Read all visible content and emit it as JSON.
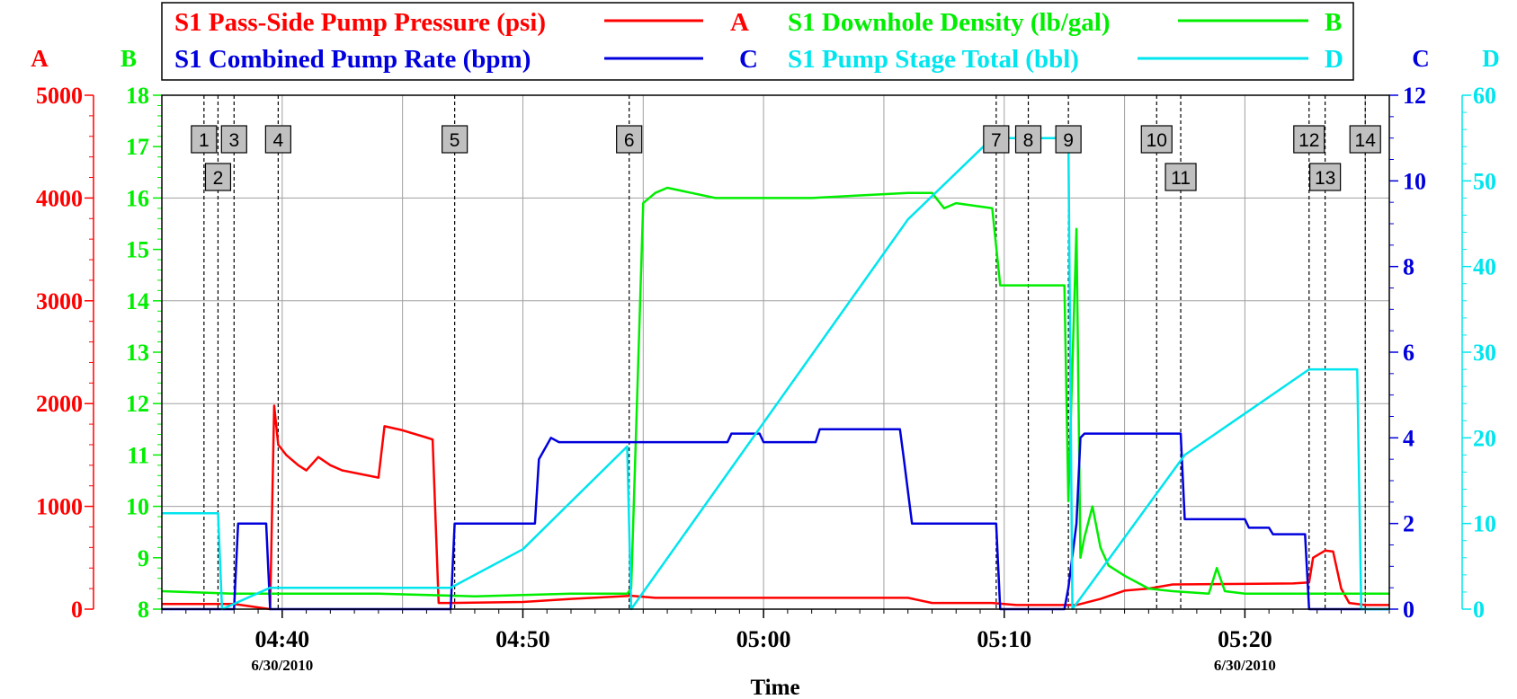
{
  "chart_data": {
    "type": "line",
    "xlabel": "Time",
    "x_ticks": [
      {
        "time": "04:40",
        "date": "6/30/2010"
      },
      {
        "time": "04:50",
        "date": ""
      },
      {
        "time": "05:00",
        "date": ""
      },
      {
        "time": "05:10",
        "date": ""
      },
      {
        "time": "05:20",
        "date": "6/30/2010"
      }
    ],
    "xlim": [
      "04:35",
      "05:26"
    ],
    "grid": true,
    "legend_placement": "top",
    "axes": [
      {
        "id": "A",
        "label": "A",
        "color": "#ff0000",
        "side": "left",
        "min": 0,
        "max": 5000,
        "ticks": [
          0,
          1000,
          2000,
          3000,
          4000,
          5000
        ]
      },
      {
        "id": "B",
        "label": "B",
        "color": "#00ee00",
        "side": "left",
        "min": 8,
        "max": 18,
        "ticks": [
          8,
          9,
          10,
          11,
          12,
          13,
          14,
          15,
          16,
          17,
          18
        ]
      },
      {
        "id": "C",
        "label": "C",
        "color": "#0000dd",
        "side": "right",
        "min": 0,
        "max": 12,
        "ticks": [
          0,
          2,
          4,
          6,
          8,
          10,
          12
        ]
      },
      {
        "id": "D",
        "label": "D",
        "color": "#00e5ee",
        "side": "right",
        "min": 0,
        "max": 60,
        "ticks": [
          0,
          10,
          20,
          30,
          40,
          50,
          60
        ]
      }
    ],
    "series": [
      {
        "name": "S1 Pass-Side Pump Pressure (psi)",
        "axis": "A",
        "color": "#ff0000",
        "x": [
          "04:35:00",
          "04:38:00",
          "04:39:30",
          "04:39:40",
          "04:39:50",
          "04:40:10",
          "04:40:40",
          "04:41:00",
          "04:41:30",
          "04:42:00",
          "04:42:30",
          "04:44:00",
          "04:44:15",
          "04:45:00",
          "04:46:00",
          "04:46:15",
          "04:46:30",
          "04:47:00",
          "04:50:00",
          "04:52:00",
          "04:54:30",
          "04:55:30",
          "05:06:00",
          "05:07:00",
          "05:09:30",
          "05:10:30",
          "05:12:30",
          "05:13:00",
          "05:14:00",
          "05:15:00",
          "05:16:00",
          "05:17:00",
          "05:22:00",
          "05:22:40",
          "05:22:50",
          "05:23:20",
          "05:23:40",
          "05:24:00",
          "05:24:20",
          "05:25:00",
          "05:26:00"
        ],
        "values": [
          50,
          50,
          0,
          1980,
          1600,
          1500,
          1400,
          1350,
          1480,
          1400,
          1350,
          1280,
          1780,
          1740,
          1670,
          1650,
          60,
          60,
          70,
          100,
          130,
          110,
          110,
          60,
          60,
          40,
          40,
          40,
          100,
          180,
          200,
          240,
          250,
          260,
          500,
          570,
          560,
          200,
          60,
          40,
          40
        ]
      },
      {
        "name": "S1 Downhole Density (lb/gal)",
        "axis": "B",
        "color": "#00ee00",
        "x": [
          "04:35:00",
          "04:38:00",
          "04:40:00",
          "04:44:00",
          "04:48:00",
          "04:52:00",
          "04:54:20",
          "04:54:30",
          "04:55:00",
          "04:55:30",
          "04:56:00",
          "04:57:00",
          "04:58:00",
          "05:00:00",
          "05:02:00",
          "05:04:00",
          "05:06:00",
          "05:07:00",
          "05:07:30",
          "05:08:00",
          "05:09:30",
          "05:09:50",
          "05:10:30",
          "05:12:30",
          "05:12:40",
          "05:13:00",
          "05:13:10",
          "05:13:20",
          "05:13:40",
          "05:14:00",
          "05:14:20",
          "05:15:00",
          "05:16:00",
          "05:17:00",
          "05:18:30",
          "05:18:50",
          "05:19:10",
          "05:20:00",
          "05:22:00",
          "05:24:00",
          "05:26:00"
        ],
        "values": [
          8.35,
          8.3,
          8.3,
          8.3,
          8.25,
          8.3,
          8.3,
          8.4,
          15.9,
          16.1,
          16.2,
          16.1,
          16.0,
          16.0,
          16.0,
          16.05,
          16.1,
          16.1,
          15.8,
          15.9,
          15.8,
          14.3,
          14.3,
          14.3,
          10.1,
          15.4,
          9.0,
          9.4,
          10.0,
          9.2,
          8.85,
          8.65,
          8.4,
          8.35,
          8.3,
          8.8,
          8.35,
          8.3,
          8.3,
          8.3,
          8.3
        ]
      },
      {
        "name": "S1 Combined Pump Rate (bpm)",
        "axis": "C",
        "color": "#0000dd",
        "x": [
          "04:35:00",
          "04:37:00",
          "04:37:40",
          "04:38:00",
          "04:38:10",
          "04:39:20",
          "04:39:30",
          "04:39:40",
          "04:47:00",
          "04:47:10",
          "04:50:30",
          "04:50:40",
          "04:51:10",
          "04:51:30",
          "04:58:30",
          "04:58:40",
          "04:59:50",
          "05:00:00",
          "05:02:10",
          "05:02:20",
          "05:05:40",
          "05:05:50",
          "05:06:10",
          "05:09:40",
          "05:09:50",
          "05:12:30",
          "05:12:40",
          "05:13:00",
          "05:13:10",
          "05:13:20",
          "05:13:40",
          "05:17:20",
          "05:17:30",
          "05:20:00",
          "05:20:10",
          "05:21:00",
          "05:21:10",
          "05:22:30",
          "05:22:40",
          "05:26:00"
        ],
        "values": [
          0,
          0,
          0,
          0,
          2.0,
          2.0,
          0,
          0,
          0,
          2.0,
          2.0,
          3.5,
          4.0,
          3.9,
          3.9,
          4.1,
          4.1,
          3.9,
          3.9,
          4.2,
          4.2,
          3.5,
          2.0,
          2.0,
          0,
          0,
          0.5,
          2.0,
          4.0,
          4.1,
          4.1,
          4.1,
          2.1,
          2.1,
          1.9,
          1.9,
          1.75,
          1.75,
          0,
          0
        ]
      },
      {
        "name": "S1 Pump Stage Total (bbl)",
        "axis": "D",
        "color": "#00e5ee",
        "x": [
          "04:35:00",
          "04:37:20",
          "04:37:30",
          "04:39:30",
          "04:47:00",
          "04:50:00",
          "04:54:20",
          "04:54:30",
          "05:06:00",
          "05:09:30",
          "05:10:00",
          "05:12:40",
          "05:12:50",
          "05:17:30",
          "05:22:40",
          "05:24:40",
          "05:24:50",
          "05:26:00"
        ],
        "values": [
          11.2,
          11.2,
          0,
          2.5,
          2.5,
          7,
          19,
          0,
          45.5,
          55,
          55,
          55,
          0,
          18,
          28,
          28,
          0,
          0
        ]
      }
    ],
    "markers": [
      {
        "label": "1",
        "time": "04:36:45",
        "row": 1
      },
      {
        "label": "2",
        "time": "04:37:20",
        "row": 2
      },
      {
        "label": "3",
        "time": "04:38:00",
        "row": 1
      },
      {
        "label": "4",
        "time": "04:39:50",
        "row": 1
      },
      {
        "label": "5",
        "time": "04:47:10",
        "row": 1
      },
      {
        "label": "6",
        "time": "04:54:25",
        "row": 1
      },
      {
        "label": "7",
        "time": "05:09:40",
        "row": 1
      },
      {
        "label": "8",
        "time": "05:11:00",
        "row": 1
      },
      {
        "label": "9",
        "time": "05:12:40",
        "row": 1
      },
      {
        "label": "10",
        "time": "05:16:20",
        "row": 1
      },
      {
        "label": "11",
        "time": "05:17:20",
        "row": 2
      },
      {
        "label": "12",
        "time": "05:22:40",
        "row": 1
      },
      {
        "label": "13",
        "time": "05:23:20",
        "row": 2
      },
      {
        "label": "14",
        "time": "05:25:00",
        "row": 1
      }
    ],
    "legend": [
      {
        "text": "S1 Pass-Side Pump Pressure (psi)",
        "axis_label": "A",
        "color": "#ff0000"
      },
      {
        "text": "S1 Downhole Density (lb/gal)",
        "axis_label": "B",
        "color": "#00ee00"
      },
      {
        "text": "S1 Combined Pump Rate (bpm)",
        "axis_label": "C",
        "color": "#0000dd"
      },
      {
        "text": "S1 Pump Stage Total (bbl)",
        "axis_label": "D",
        "color": "#00e5ee"
      }
    ]
  }
}
